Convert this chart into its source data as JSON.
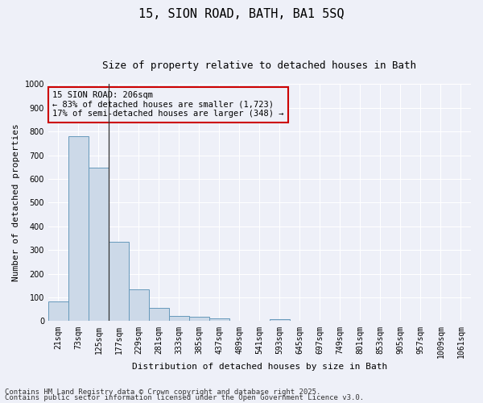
{
  "title": "15, SION ROAD, BATH, BA1 5SQ",
  "subtitle": "Size of property relative to detached houses in Bath",
  "xlabel": "Distribution of detached houses by size in Bath",
  "ylabel": "Number of detached properties",
  "categories": [
    "21sqm",
    "73sqm",
    "125sqm",
    "177sqm",
    "229sqm",
    "281sqm",
    "333sqm",
    "385sqm",
    "437sqm",
    "489sqm",
    "541sqm",
    "593sqm",
    "645sqm",
    "697sqm",
    "749sqm",
    "801sqm",
    "853sqm",
    "905sqm",
    "957sqm",
    "1009sqm",
    "1061sqm"
  ],
  "values": [
    83,
    780,
    648,
    335,
    133,
    57,
    22,
    19,
    11,
    0,
    0,
    8,
    0,
    0,
    0,
    0,
    0,
    0,
    0,
    0,
    0
  ],
  "bar_color": "#ccd9e8",
  "bar_edge_color": "#6699bb",
  "background_color": "#eef0f8",
  "grid_color": "#ffffff",
  "annotation_box_text": "15 SION ROAD: 206sqm\n← 83% of detached houses are smaller (1,723)\n17% of semi-detached houses are larger (348) →",
  "annotation_box_color": "#cc0000",
  "vline_x_index": 2.5,
  "ylim": [
    0,
    1000
  ],
  "yticks": [
    0,
    100,
    200,
    300,
    400,
    500,
    600,
    700,
    800,
    900,
    1000
  ],
  "footnote1": "Contains HM Land Registry data © Crown copyright and database right 2025.",
  "footnote2": "Contains public sector information licensed under the Open Government Licence v3.0.",
  "title_fontsize": 11,
  "subtitle_fontsize": 9,
  "label_fontsize": 8,
  "tick_fontsize": 7,
  "annot_fontsize": 7.5,
  "footnote_fontsize": 6.5
}
